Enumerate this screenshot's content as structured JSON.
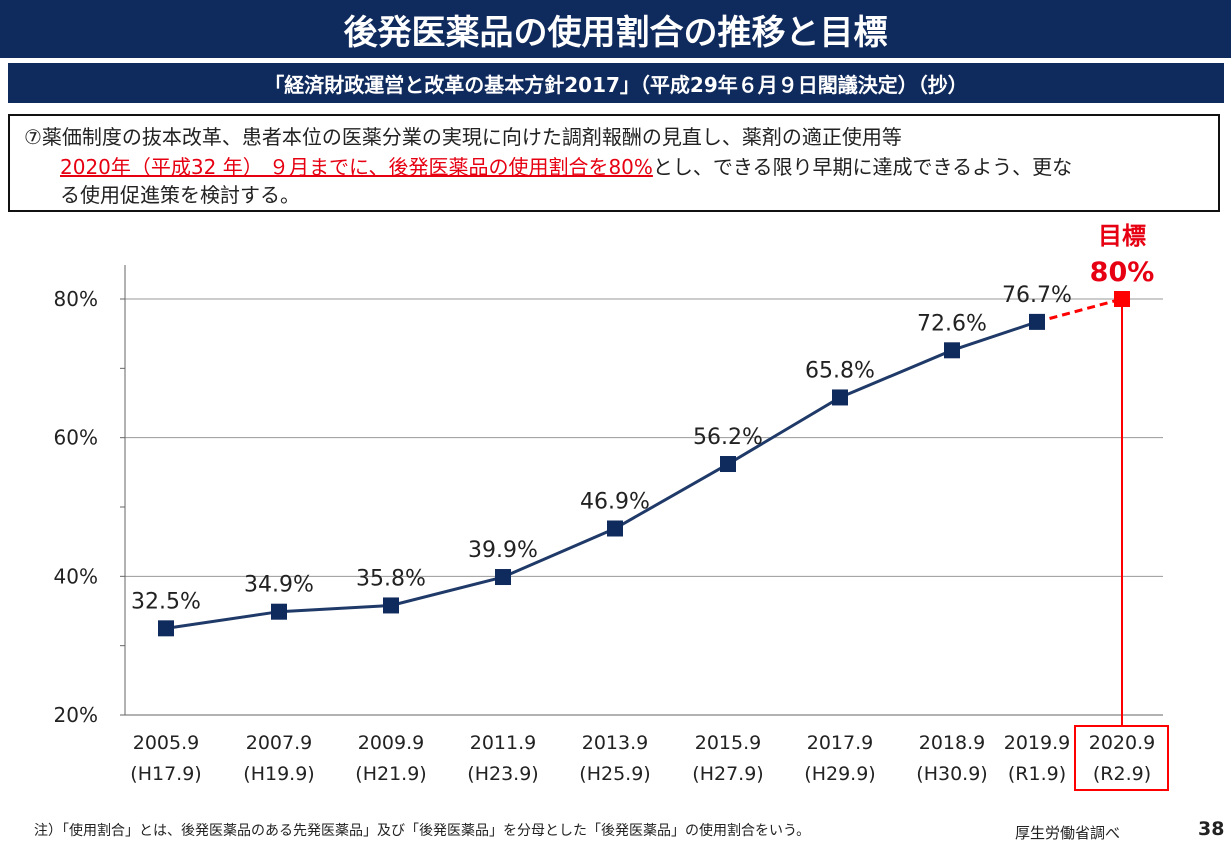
{
  "header": {
    "title": "後発医薬品の使用割合の推移と目標",
    "subtitle": "「経済財政運営と改革の基本方針2017」（平成29年６月９日閣議決定）（抄）"
  },
  "policy": {
    "line1": "⑦薬価制度の抜本改革、患者本位の医薬分業の実現に向けた調剤報酬の見直し、薬剤の適正使用等",
    "line2_highlight": "2020年（平成32 年） ９月までに、後発医薬品の使用割合を80%",
    "line2_rest": "とし、できる限り早期に達成できるよう、更な",
    "line3": "る使用促進策を検討する。"
  },
  "chart_data": {
    "type": "line",
    "categories": [
      "2005.9",
      "2007.9",
      "2009.9",
      "2011.9",
      "2013.9",
      "2015.9",
      "2017.9",
      "2018.9",
      "2019.9",
      "2020.9"
    ],
    "sub_labels": [
      "(H17.9)",
      "(H19.9)",
      "(H21.9)",
      "(H23.9)",
      "(H25.9)",
      "(H27.9)",
      "(H29.9)",
      "(H30.9)",
      "(R1.9)",
      "(R2.9)"
    ],
    "series": [
      {
        "values": [
          32.5,
          34.9,
          35.8,
          39.9,
          46.9,
          56.2,
          65.8,
          72.6,
          76.7,
          null
        ]
      }
    ],
    "data_labels": [
      "32.5%",
      "34.9%",
      "35.8%",
      "39.9%",
      "46.9%",
      "56.2%",
      "65.8%",
      "72.6%",
      "76.7%"
    ],
    "target": {
      "category": "2020.9",
      "value": 80,
      "label_top": "目標",
      "label_bottom": "80%"
    },
    "yticks": [
      20,
      40,
      60,
      80
    ],
    "ytick_labels": [
      "20%",
      "40%",
      "60%",
      "80%"
    ],
    "ylim": [
      20,
      85
    ],
    "grid": true,
    "colors": {
      "line": "#1f3a68",
      "marker": "#0f2a5c",
      "target": "#ff0000",
      "grid": "#9a9a9a"
    }
  },
  "footer": {
    "note": "注）「使用割合」とは、後発医薬品のある先発医薬品」及び「後発医薬品」を分母とした「後発医薬品」の使用割合をいう。",
    "source": "厚生労働省調べ",
    "page_number": "38"
  }
}
